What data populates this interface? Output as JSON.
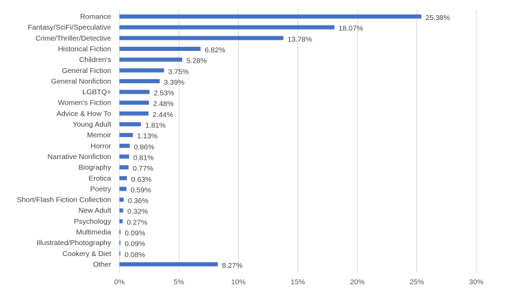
{
  "chart_data": {
    "type": "bar",
    "orientation": "horizontal",
    "bar_color": "#4472c4",
    "grid": "vertical",
    "xlim": [
      0,
      30
    ],
    "xticks": [
      "0%",
      "5%",
      "10%",
      "15%",
      "20%",
      "25%",
      "30%"
    ],
    "categories": [
      "Romance",
      "Fantasy/SciFi/Speculative",
      "Crime/Thriller/Detective",
      "Historical Fiction",
      "Children's",
      "General Fiction",
      "General Nonfiction",
      "LGBTQ+",
      "Women's Fiction",
      "Advice & How To",
      "Young Adult",
      "Memoir",
      "Horror",
      "Narrative Nonfiction",
      "Biography",
      "Erotica",
      "Poetry",
      "Short/Flash Fiction Collection",
      "New Adult",
      "Psychology",
      "Multimedia",
      "Illustrated/Photography",
      "Cookery & Diet",
      "Other"
    ],
    "values": [
      25.38,
      18.07,
      13.78,
      6.82,
      5.28,
      3.75,
      3.39,
      2.53,
      2.48,
      2.44,
      1.81,
      1.13,
      0.86,
      0.81,
      0.77,
      0.63,
      0.59,
      0.36,
      0.32,
      0.27,
      0.09,
      0.09,
      0.08,
      8.27
    ],
    "data_labels": [
      "25.38%",
      "18.07%",
      "13.78%",
      "6.82%",
      "5.28%",
      "3.75%",
      "3.39%",
      "2.53%",
      "2.48%",
      "2.44%",
      "1.81%",
      "1.13%",
      "0.86%",
      "0.81%",
      "0.77%",
      "0.63%",
      "0.59%",
      "0.36%",
      "0.32%",
      "0.27%",
      "0.09%",
      "0.09%",
      "0.08%",
      "8.27%"
    ]
  }
}
